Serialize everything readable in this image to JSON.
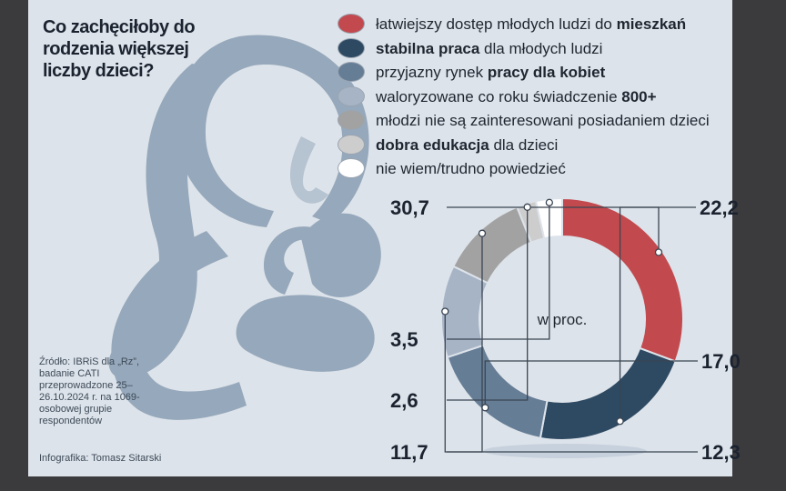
{
  "title": "Co zachęciłoby do rodzenia większej liczby dzieci?",
  "source": "Źródło: IBRiS dla „Rz”, badanie CATI przeprowadzone 25–26.10.2024 r. na 1069-osobowej grupie respondentów",
  "credit": "Infografika: Tomasz Sitarski",
  "chart_data": {
    "type": "pie",
    "center_label": "w proc.",
    "categories": [
      "łatwiejszy dostęp młodych ludzi do mieszkań",
      "stabilna praca dla młodych ludzi",
      "przyjazny rynek pracy dla kobiet",
      "waloryzowane co roku świadczenie 800+",
      "młodzi nie są zainteresowani posiadaniem dzieci",
      "dobra edukacja dla dzieci",
      "nie wiem/trudno powiedzieć"
    ],
    "values": [
      30.7,
      22.2,
      17.0,
      12.3,
      11.7,
      2.6,
      3.5
    ],
    "value_labels": [
      "30,7",
      "22,2",
      "17,0",
      "12,3",
      "11,7",
      "2,6",
      "3,5"
    ],
    "colors": [
      "#c24a4f",
      "#2e4a63",
      "#667d96",
      "#a7b4c6",
      "#a2a2a2",
      "#cdcdcd",
      "#ffffff"
    ],
    "legend_placement": "top-right"
  },
  "legend": [
    {
      "parts": [
        {
          "t": "łatwiejszy dostęp młodych ludzi do ",
          "b": false
        },
        {
          "t": "mieszkań",
          "b": true
        }
      ]
    },
    {
      "parts": [
        {
          "t": "stabilna praca",
          "b": true
        },
        {
          "t": " dla młodych ludzi",
          "b": false
        }
      ]
    },
    {
      "parts": [
        {
          "t": "przyjazny rynek ",
          "b": false
        },
        {
          "t": "pracy dla kobiet",
          "b": true
        }
      ]
    },
    {
      "parts": [
        {
          "t": "waloryzowane co roku świadczenie ",
          "b": false
        },
        {
          "t": "800+",
          "b": true
        }
      ]
    },
    {
      "parts": [
        {
          "t": "młodzi nie są zainteresowani posiadaniem dzieci",
          "b": false
        }
      ]
    },
    {
      "parts": [
        {
          "t": "dobra edukacja",
          "b": true
        },
        {
          "t": " dla dzieci",
          "b": false
        }
      ]
    },
    {
      "parts": [
        {
          "t": "nie wiem/trudno powiedzieć",
          "b": false
        }
      ]
    }
  ]
}
